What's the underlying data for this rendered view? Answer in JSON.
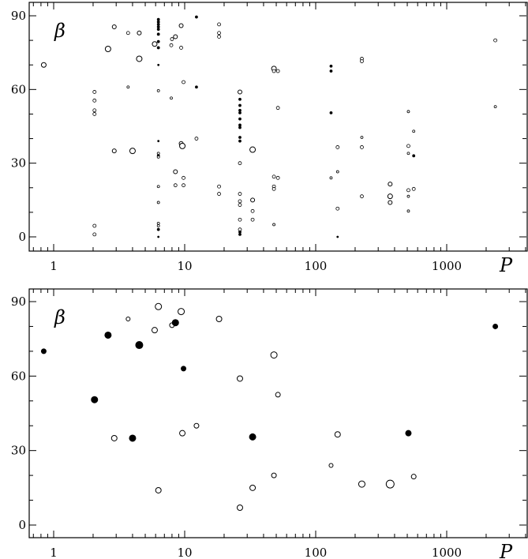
{
  "chart_data": [
    {
      "type": "scatter",
      "title": "",
      "xlabel": "P",
      "ylabel": "β",
      "xscale": "log",
      "xlim": [
        0.66,
        4000
      ],
      "ylim": [
        -5,
        95
      ],
      "xticks": [
        1,
        10,
        100,
        1000
      ],
      "xtick_labels": [
        "1",
        "10",
        "100",
        "1000"
      ],
      "yticks": [
        0,
        30,
        60,
        90
      ],
      "ytick_labels": [
        "0",
        "30",
        "60",
        "90"
      ],
      "marker": "open-circle",
      "grid": false,
      "points": [
        {
          "x": 0.84,
          "y": 70,
          "s": 3,
          "filled": false
        },
        {
          "x": 2.05,
          "y": 59,
          "s": 2,
          "filled": false
        },
        {
          "x": 2.05,
          "y": 55.5,
          "s": 2,
          "filled": false
        },
        {
          "x": 2.05,
          "y": 51.5,
          "s": 2,
          "filled": false
        },
        {
          "x": 2.05,
          "y": 50,
          "s": 2,
          "filled": false
        },
        {
          "x": 2.05,
          "y": 4.5,
          "s": 2,
          "filled": false
        },
        {
          "x": 2.05,
          "y": 1,
          "s": 2,
          "filled": false
        },
        {
          "x": 2.6,
          "y": 76.5,
          "s": 3.5,
          "filled": false
        },
        {
          "x": 2.9,
          "y": 85.5,
          "s": 2.5,
          "filled": false
        },
        {
          "x": 2.9,
          "y": 35,
          "s": 2.5,
          "filled": false
        },
        {
          "x": 3.7,
          "y": 83,
          "s": 2,
          "filled": false
        },
        {
          "x": 3.7,
          "y": 61,
          "s": 1.5,
          "filled": false
        },
        {
          "x": 4.0,
          "y": 35,
          "s": 3.5,
          "filled": false
        },
        {
          "x": 4.5,
          "y": 83,
          "s": 2.5,
          "filled": false
        },
        {
          "x": 4.5,
          "y": 72.5,
          "s": 3.5,
          "filled": false
        },
        {
          "x": 5.9,
          "y": 78.5,
          "s": 3,
          "filled": false
        },
        {
          "x": 6.3,
          "y": 88.5,
          "s": 1.5,
          "filled": true
        },
        {
          "x": 6.3,
          "y": 87.5,
          "s": 1.5,
          "filled": true
        },
        {
          "x": 6.3,
          "y": 86.5,
          "s": 1.5,
          "filled": true
        },
        {
          "x": 6.3,
          "y": 85.5,
          "s": 1.5,
          "filled": true
        },
        {
          "x": 6.3,
          "y": 84.5,
          "s": 1.5,
          "filled": true
        },
        {
          "x": 6.3,
          "y": 82.5,
          "s": 1.5,
          "filled": true
        },
        {
          "x": 6.3,
          "y": 79.5,
          "s": 1.5,
          "filled": true
        },
        {
          "x": 6.3,
          "y": 77,
          "s": 1.5,
          "filled": true
        },
        {
          "x": 6.3,
          "y": 70,
          "s": 1,
          "filled": true
        },
        {
          "x": 6.3,
          "y": 59.5,
          "s": 1.5,
          "filled": false
        },
        {
          "x": 6.3,
          "y": 39,
          "s": 1,
          "filled": true
        },
        {
          "x": 6.3,
          "y": 34,
          "s": 1.5,
          "filled": false
        },
        {
          "x": 6.3,
          "y": 33,
          "s": 1.5,
          "filled": true
        },
        {
          "x": 6.3,
          "y": 32.5,
          "s": 1.5,
          "filled": false
        },
        {
          "x": 6.3,
          "y": 20.5,
          "s": 1.5,
          "filled": false
        },
        {
          "x": 6.3,
          "y": 14,
          "s": 1.5,
          "filled": false
        },
        {
          "x": 6.3,
          "y": 5.5,
          "s": 1.5,
          "filled": false
        },
        {
          "x": 6.3,
          "y": 4.5,
          "s": 1.5,
          "filled": false
        },
        {
          "x": 6.3,
          "y": 3,
          "s": 1.5,
          "filled": true
        },
        {
          "x": 6.3,
          "y": 0,
          "s": 1,
          "filled": true
        },
        {
          "x": 7.9,
          "y": 78,
          "s": 2,
          "filled": false
        },
        {
          "x": 7.9,
          "y": 56.5,
          "s": 1.5,
          "filled": false
        },
        {
          "x": 8.0,
          "y": 80.5,
          "s": 2,
          "filled": false
        },
        {
          "x": 8.5,
          "y": 81.5,
          "s": 2.5,
          "filled": false
        },
        {
          "x": 8.5,
          "y": 26.5,
          "s": 2.5,
          "filled": false
        },
        {
          "x": 8.5,
          "y": 21,
          "s": 2,
          "filled": false
        },
        {
          "x": 9.4,
          "y": 86,
          "s": 2.5,
          "filled": false
        },
        {
          "x": 9.4,
          "y": 77,
          "s": 2,
          "filled": false
        },
        {
          "x": 9.4,
          "y": 38,
          "s": 2.5,
          "filled": false
        },
        {
          "x": 9.6,
          "y": 37,
          "s": 3.5,
          "filled": false
        },
        {
          "x": 9.8,
          "y": 63,
          "s": 2,
          "filled": false
        },
        {
          "x": 9.8,
          "y": 24,
          "s": 2,
          "filled": false
        },
        {
          "x": 9.8,
          "y": 21,
          "s": 2,
          "filled": false
        },
        {
          "x": 12.3,
          "y": 89.5,
          "s": 1.5,
          "filled": true
        },
        {
          "x": 12.3,
          "y": 61,
          "s": 1.5,
          "filled": true
        },
        {
          "x": 12.3,
          "y": 40,
          "s": 2,
          "filled": false
        },
        {
          "x": 18.3,
          "y": 86.5,
          "s": 2,
          "filled": false
        },
        {
          "x": 18.3,
          "y": 83,
          "s": 2,
          "filled": false
        },
        {
          "x": 18.3,
          "y": 81.5,
          "s": 2,
          "filled": false
        },
        {
          "x": 18.3,
          "y": 20.5,
          "s": 2,
          "filled": false
        },
        {
          "x": 18.3,
          "y": 17.5,
          "s": 2,
          "filled": false
        },
        {
          "x": 26.4,
          "y": 59,
          "s": 2.5,
          "filled": false
        },
        {
          "x": 26.4,
          "y": 56,
          "s": 1.5,
          "filled": true
        },
        {
          "x": 26.4,
          "y": 53.5,
          "s": 1.5,
          "filled": true
        },
        {
          "x": 26.4,
          "y": 51.5,
          "s": 1.5,
          "filled": true
        },
        {
          "x": 26.4,
          "y": 50.5,
          "s": 1.5,
          "filled": true
        },
        {
          "x": 26.4,
          "y": 48,
          "s": 1.5,
          "filled": true
        },
        {
          "x": 26.4,
          "y": 45.5,
          "s": 1.5,
          "filled": true
        },
        {
          "x": 26.4,
          "y": 44.5,
          "s": 1.5,
          "filled": true
        },
        {
          "x": 26.4,
          "y": 40.5,
          "s": 1.5,
          "filled": true
        },
        {
          "x": 26.4,
          "y": 39,
          "s": 1.5,
          "filled": true
        },
        {
          "x": 26.4,
          "y": 30,
          "s": 2,
          "filled": false
        },
        {
          "x": 26.4,
          "y": 17.5,
          "s": 2,
          "filled": false
        },
        {
          "x": 26.4,
          "y": 14.5,
          "s": 2,
          "filled": false
        },
        {
          "x": 26.4,
          "y": 13,
          "s": 2,
          "filled": false
        },
        {
          "x": 26.4,
          "y": 7,
          "s": 2,
          "filled": false
        },
        {
          "x": 26.4,
          "y": 3,
          "s": 2,
          "filled": false
        },
        {
          "x": 26.4,
          "y": 2,
          "s": 1.5,
          "filled": true
        },
        {
          "x": 26.4,
          "y": 1,
          "s": 1.5,
          "filled": true
        },
        {
          "x": 33.0,
          "y": 35.5,
          "s": 3.5,
          "filled": false
        },
        {
          "x": 33.0,
          "y": 15,
          "s": 2.5,
          "filled": false
        },
        {
          "x": 33.0,
          "y": 10.5,
          "s": 2,
          "filled": false
        },
        {
          "x": 33.0,
          "y": 7,
          "s": 2,
          "filled": false
        },
        {
          "x": 48,
          "y": 68.5,
          "s": 3,
          "filled": false
        },
        {
          "x": 48,
          "y": 67.5,
          "s": 2,
          "filled": false
        },
        {
          "x": 48,
          "y": 24.5,
          "s": 2,
          "filled": false
        },
        {
          "x": 48,
          "y": 20.5,
          "s": 2,
          "filled": false
        },
        {
          "x": 48,
          "y": 19.5,
          "s": 2,
          "filled": false
        },
        {
          "x": 48,
          "y": 5,
          "s": 1.5,
          "filled": false
        },
        {
          "x": 51.5,
          "y": 67.5,
          "s": 2,
          "filled": false
        },
        {
          "x": 51.5,
          "y": 52.5,
          "s": 2,
          "filled": false
        },
        {
          "x": 51.5,
          "y": 24,
          "s": 2,
          "filled": false
        },
        {
          "x": 131,
          "y": 69.5,
          "s": 1.5,
          "filled": true
        },
        {
          "x": 131,
          "y": 67.5,
          "s": 1.5,
          "filled": true
        },
        {
          "x": 131,
          "y": 50.5,
          "s": 1.5,
          "filled": true
        },
        {
          "x": 131,
          "y": 24,
          "s": 1.5,
          "filled": false
        },
        {
          "x": 147,
          "y": 36.5,
          "s": 2,
          "filled": false
        },
        {
          "x": 147,
          "y": 26.5,
          "s": 1.5,
          "filled": false
        },
        {
          "x": 147,
          "y": 11.5,
          "s": 2,
          "filled": false
        },
        {
          "x": 147,
          "y": 0,
          "s": 1,
          "filled": true
        },
        {
          "x": 225,
          "y": 72.5,
          "s": 2,
          "filled": false
        },
        {
          "x": 225,
          "y": 71.5,
          "s": 2,
          "filled": false
        },
        {
          "x": 225,
          "y": 40.5,
          "s": 1.5,
          "filled": false
        },
        {
          "x": 225,
          "y": 36.5,
          "s": 2,
          "filled": false
        },
        {
          "x": 225,
          "y": 16.5,
          "s": 2,
          "filled": false
        },
        {
          "x": 370,
          "y": 21.5,
          "s": 2.5,
          "filled": false
        },
        {
          "x": 370,
          "y": 16.5,
          "s": 3,
          "filled": false
        },
        {
          "x": 370,
          "y": 14,
          "s": 2.5,
          "filled": false
        },
        {
          "x": 510,
          "y": 51,
          "s": 1.5,
          "filled": false
        },
        {
          "x": 510,
          "y": 37,
          "s": 2,
          "filled": false
        },
        {
          "x": 510,
          "y": 34,
          "s": 1.5,
          "filled": false
        },
        {
          "x": 510,
          "y": 19,
          "s": 2,
          "filled": false
        },
        {
          "x": 510,
          "y": 16.5,
          "s": 1.5,
          "filled": false
        },
        {
          "x": 510,
          "y": 10.5,
          "s": 1.5,
          "filled": false
        },
        {
          "x": 560,
          "y": 43,
          "s": 1.5,
          "filled": false
        },
        {
          "x": 560,
          "y": 33,
          "s": 1.5,
          "filled": true
        },
        {
          "x": 560,
          "y": 19.5,
          "s": 2,
          "filled": false
        },
        {
          "x": 2350,
          "y": 80,
          "s": 2,
          "filled": false
        },
        {
          "x": 2350,
          "y": 53,
          "s": 1.5,
          "filled": false
        }
      ]
    },
    {
      "type": "scatter",
      "title": "",
      "xlabel": "P",
      "ylabel": "β",
      "xscale": "log",
      "xlim": [
        0.66,
        4000
      ],
      "ylim": [
        -5,
        95
      ],
      "xticks": [
        1,
        10,
        100,
        1000
      ],
      "xtick_labels": [
        "1",
        "10",
        "100",
        "1000"
      ],
      "yticks": [
        0,
        30,
        60,
        90
      ],
      "ytick_labels": [
        "0",
        "30",
        "60",
        "90"
      ],
      "marker": "open/filled circle",
      "grid": false,
      "points": [
        {
          "x": 0.84,
          "y": 70,
          "s": 3,
          "filled": true
        },
        {
          "x": 2.05,
          "y": 50.5,
          "s": 4,
          "filled": true
        },
        {
          "x": 2.6,
          "y": 76.5,
          "s": 4,
          "filled": true
        },
        {
          "x": 2.9,
          "y": 35,
          "s": 3.5,
          "filled": false
        },
        {
          "x": 3.7,
          "y": 83,
          "s": 2.5,
          "filled": false
        },
        {
          "x": 4.0,
          "y": 35,
          "s": 4,
          "filled": true
        },
        {
          "x": 4.5,
          "y": 72.5,
          "s": 4.5,
          "filled": true
        },
        {
          "x": 5.9,
          "y": 78.5,
          "s": 3.5,
          "filled": false
        },
        {
          "x": 6.3,
          "y": 88,
          "s": 4,
          "filled": false
        },
        {
          "x": 6.3,
          "y": 14,
          "s": 3.5,
          "filled": false
        },
        {
          "x": 8.0,
          "y": 80.5,
          "s": 3,
          "filled": false
        },
        {
          "x": 8.5,
          "y": 81.5,
          "s": 4,
          "filled": true
        },
        {
          "x": 9.4,
          "y": 86,
          "s": 4,
          "filled": false
        },
        {
          "x": 9.6,
          "y": 37,
          "s": 3.5,
          "filled": false
        },
        {
          "x": 9.8,
          "y": 63,
          "s": 3,
          "filled": true
        },
        {
          "x": 12.3,
          "y": 40,
          "s": 3,
          "filled": false
        },
        {
          "x": 18.3,
          "y": 83,
          "s": 3.5,
          "filled": false
        },
        {
          "x": 26.4,
          "y": 59,
          "s": 3.5,
          "filled": false
        },
        {
          "x": 26.4,
          "y": 7,
          "s": 3.5,
          "filled": false
        },
        {
          "x": 33.0,
          "y": 35.5,
          "s": 4,
          "filled": true
        },
        {
          "x": 33.0,
          "y": 15,
          "s": 3.5,
          "filled": false
        },
        {
          "x": 48,
          "y": 68.5,
          "s": 4,
          "filled": false
        },
        {
          "x": 48,
          "y": 20,
          "s": 3,
          "filled": false
        },
        {
          "x": 51.5,
          "y": 52.5,
          "s": 3,
          "filled": false
        },
        {
          "x": 131,
          "y": 24,
          "s": 2.5,
          "filled": false
        },
        {
          "x": 147,
          "y": 36.5,
          "s": 3.5,
          "filled": false
        },
        {
          "x": 225,
          "y": 16.5,
          "s": 4,
          "filled": false
        },
        {
          "x": 370,
          "y": 16.5,
          "s": 5,
          "filled": false
        },
        {
          "x": 510,
          "y": 37,
          "s": 3.5,
          "filled": true
        },
        {
          "x": 560,
          "y": 19.5,
          "s": 3,
          "filled": false
        },
        {
          "x": 2350,
          "y": 80,
          "s": 3,
          "filled": true
        }
      ]
    }
  ]
}
